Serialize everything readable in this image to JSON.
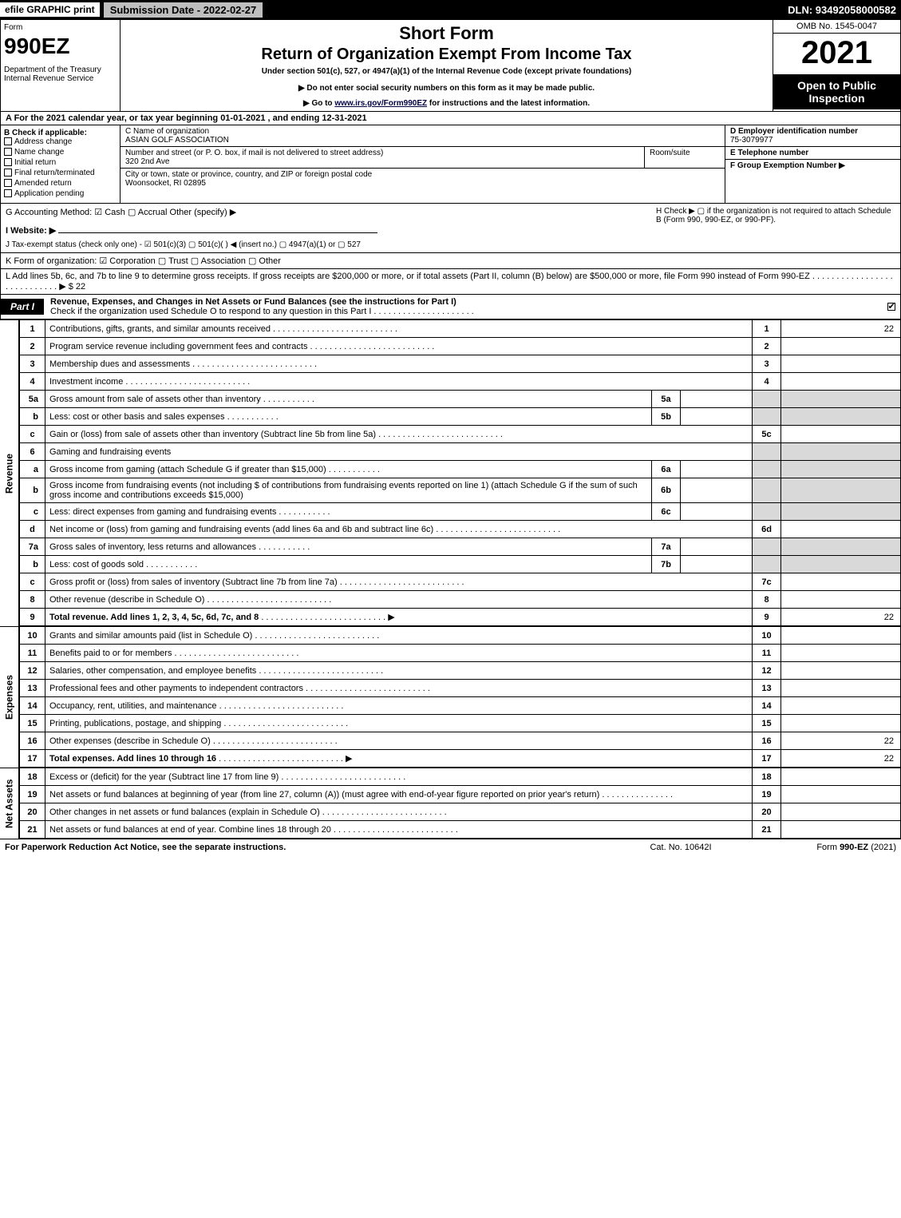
{
  "topbar": {
    "efile": "efile GRAPHIC print",
    "submission": "Submission Date - 2022-02-27",
    "dln": "DLN: 93492058000582"
  },
  "header": {
    "form_label": "Form",
    "form_no": "990EZ",
    "dept": "Department of the Treasury\nInternal Revenue Service",
    "shortform": "Short Form",
    "returnof": "Return of Organization Exempt From Income Tax",
    "under": "Under section 501(c), 527, or 4947(a)(1) of the Internal Revenue Code (except private foundations)",
    "donot": "▶ Do not enter social security numbers on this form as it may be made public.",
    "goto_pre": "▶ Go to ",
    "goto_link": "www.irs.gov/Form990EZ",
    "goto_post": " for instructions and the latest information.",
    "omb": "OMB No. 1545-0047",
    "year": "2021",
    "opento": "Open to Public Inspection"
  },
  "sectA": "A  For the 2021 calendar year, or tax year beginning 01-01-2021 , and ending 12-31-2021",
  "sectB": {
    "title": "B  Check if applicable:",
    "items": [
      "Address change",
      "Name change",
      "Initial return",
      "Final return/terminated",
      "Amended return",
      "Application pending"
    ]
  },
  "sectC": {
    "c_label": "C Name of organization",
    "c_val": "ASIAN GOLF ASSOCIATION",
    "street_label": "Number and street (or P. O. box, if mail is not delivered to street address)",
    "street_val": "320 2nd Ave",
    "room_label": "Room/suite",
    "city_label": "City or town, state or province, country, and ZIP or foreign postal code",
    "city_val": "Woonsocket, RI  02895"
  },
  "sectDE": {
    "d_label": "D Employer identification number",
    "d_val": "75-3079977",
    "e_label": "E Telephone number",
    "f_label": "F Group Exemption Number   ▶"
  },
  "sectG": {
    "left1": "G Accounting Method:   ☑ Cash  ▢ Accrual  Other (specify) ▶",
    "left2": "I Website: ▶",
    "left3": "J Tax-exempt status (check only one) - ☑ 501(c)(3) ▢ 501(c)(  ) ◀ (insert no.) ▢ 4947(a)(1) or ▢ 527",
    "right": "H  Check ▶  ▢  if the organization is not required to attach Schedule B (Form 990, 990-EZ, or 990-PF)."
  },
  "sectK": "K Form of organization:  ☑ Corporation  ▢ Trust  ▢ Association  ▢ Other",
  "sectL": "L Add lines 5b, 6c, and 7b to line 9 to determine gross receipts. If gross receipts are $200,000 or more, or if total assets (Part II, column (B) below) are $500,000 or more, file Form 990 instead of Form 990-EZ  .  .  .  .  .  .  .  .  .  .  .  .  .  .  .  .  .  .  .  .  .  .  .  .  .  .  .  . ▶ $ 22",
  "part1": {
    "label": "Part I",
    "title": "Revenue, Expenses, and Changes in Net Assets or Fund Balances (see the instructions for Part I)",
    "subtitle": "Check if the organization used Schedule O to respond to any question in this Part I"
  },
  "side_labels": {
    "revenue": "Revenue",
    "expenses": "Expenses",
    "netassets": "Net Assets"
  },
  "revenue_lines": [
    {
      "n": "1",
      "d": "Contributions, gifts, grants, and similar amounts received",
      "r": "1",
      "v": "22"
    },
    {
      "n": "2",
      "d": "Program service revenue including government fees and contracts",
      "r": "2",
      "v": ""
    },
    {
      "n": "3",
      "d": "Membership dues and assessments",
      "r": "3",
      "v": ""
    },
    {
      "n": "4",
      "d": "Investment income",
      "r": "4",
      "v": ""
    }
  ],
  "line5a": {
    "n": "5a",
    "d": "Gross amount from sale of assets other than inventory",
    "mid": "5a"
  },
  "line5b": {
    "n": "b",
    "d": "Less: cost or other basis and sales expenses",
    "mid": "5b"
  },
  "line5c": {
    "n": "c",
    "d": "Gain or (loss) from sale of assets other than inventory (Subtract line 5b from line 5a)",
    "r": "5c"
  },
  "line6": {
    "n": "6",
    "d": "Gaming and fundraising events"
  },
  "line6a": {
    "n": "a",
    "d": "Gross income from gaming (attach Schedule G if greater than $15,000)",
    "mid": "6a"
  },
  "line6b": {
    "n": "b",
    "d": "Gross income from fundraising events (not including $                      of contributions from fundraising events reported on line 1) (attach Schedule G if the sum of such gross income and contributions exceeds $15,000)",
    "mid": "6b"
  },
  "line6c": {
    "n": "c",
    "d": "Less: direct expenses from gaming and fundraising events",
    "mid": "6c"
  },
  "line6d": {
    "n": "d",
    "d": "Net income or (loss) from gaming and fundraising events (add lines 6a and 6b and subtract line 6c)",
    "r": "6d"
  },
  "line7a": {
    "n": "7a",
    "d": "Gross sales of inventory, less returns and allowances",
    "mid": "7a"
  },
  "line7b": {
    "n": "b",
    "d": "Less: cost of goods sold",
    "mid": "7b"
  },
  "line7c": {
    "n": "c",
    "d": "Gross profit or (loss) from sales of inventory (Subtract line 7b from line 7a)",
    "r": "7c"
  },
  "line8": {
    "n": "8",
    "d": "Other revenue (describe in Schedule O)",
    "r": "8"
  },
  "line9": {
    "n": "9",
    "d": "Total revenue. Add lines 1, 2, 3, 4, 5c, 6d, 7c, and 8",
    "r": "9",
    "v": "22",
    "arrow": true
  },
  "expense_lines": [
    {
      "n": "10",
      "d": "Grants and similar amounts paid (list in Schedule O)",
      "r": "10"
    },
    {
      "n": "11",
      "d": "Benefits paid to or for members",
      "r": "11"
    },
    {
      "n": "12",
      "d": "Salaries, other compensation, and employee benefits",
      "r": "12"
    },
    {
      "n": "13",
      "d": "Professional fees and other payments to independent contractors",
      "r": "13"
    },
    {
      "n": "14",
      "d": "Occupancy, rent, utilities, and maintenance",
      "r": "14"
    },
    {
      "n": "15",
      "d": "Printing, publications, postage, and shipping",
      "r": "15"
    },
    {
      "n": "16",
      "d": "Other expenses (describe in Schedule O)",
      "r": "16",
      "v": "22"
    },
    {
      "n": "17",
      "d": "Total expenses. Add lines 10 through 16",
      "r": "17",
      "v": "22",
      "arrow": true
    }
  ],
  "netasset_lines": [
    {
      "n": "18",
      "d": "Excess or (deficit) for the year (Subtract line 17 from line 9)",
      "r": "18"
    },
    {
      "n": "19",
      "d": "Net assets or fund balances at beginning of year (from line 27, column (A)) (must agree with end-of-year figure reported on prior year's return)",
      "r": "19"
    },
    {
      "n": "20",
      "d": "Other changes in net assets or fund balances (explain in Schedule O)",
      "r": "20"
    },
    {
      "n": "21",
      "d": "Net assets or fund balances at end of year. Combine lines 18 through 20",
      "r": "21"
    }
  ],
  "footer": {
    "left": "For Paperwork Reduction Act Notice, see the separate instructions.",
    "mid": "Cat. No. 10642I",
    "right": "Form 990-EZ (2021)"
  }
}
